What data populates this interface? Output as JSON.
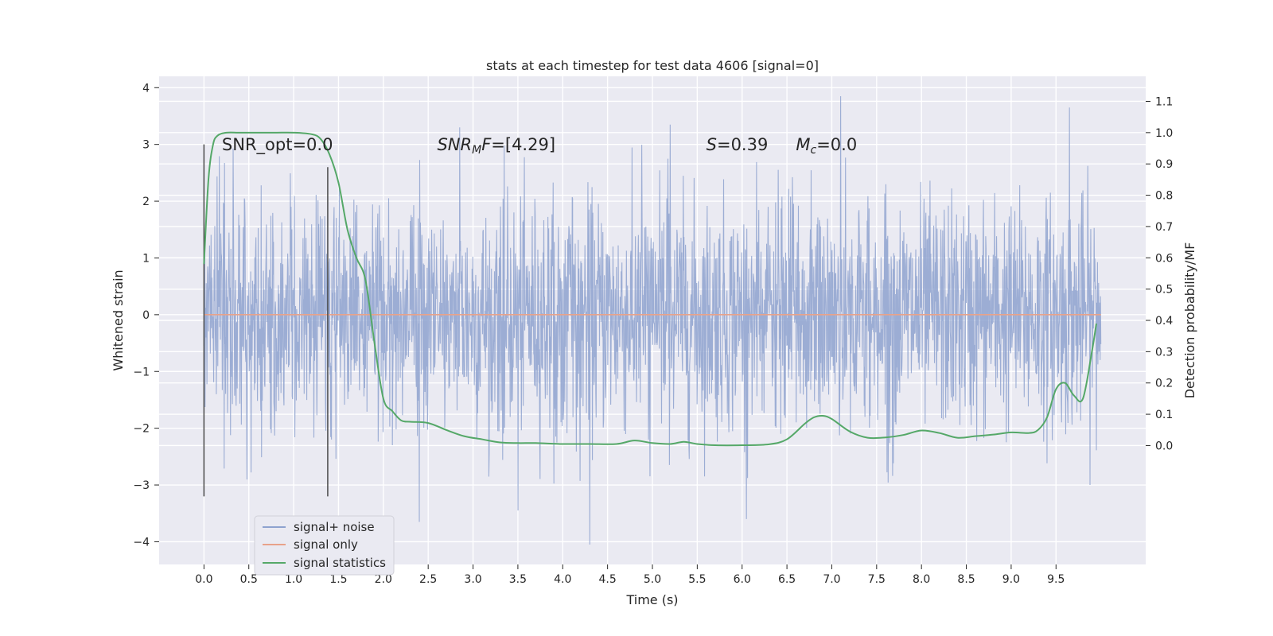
{
  "chart_data": {
    "type": "line",
    "title": "stats at each timestep for test data 4606 [signal=0]",
    "xlabel": "Time (s)",
    "ylabel": "Whitened strain",
    "ylabel_right": "Detection probability/MF",
    "xlim": [
      -0.5,
      10.5
    ],
    "ylim": [
      -4.4,
      4.2
    ],
    "ylim_right": [
      -0.38,
      1.18
    ],
    "x_ticks": [
      0.0,
      0.5,
      1.0,
      1.5,
      2.0,
      2.5,
      3.0,
      3.5,
      4.0,
      4.5,
      5.0,
      5.5,
      6.0,
      6.5,
      7.0,
      7.5,
      8.0,
      8.5,
      9.0,
      9.5
    ],
    "y_ticks": [
      -4,
      -3,
      -2,
      -1,
      0,
      1,
      2,
      3,
      4
    ],
    "y_ticks_right": [
      0.0,
      0.1,
      0.2,
      0.3,
      0.4,
      0.5,
      0.6,
      0.7,
      0.8,
      0.9,
      1.0,
      1.1
    ],
    "grid": true,
    "legend_position": "lower-left",
    "annotations": [
      {
        "prefix": "SNR_opt=0.0",
        "sub": "",
        "suffix": "",
        "x": 0.2,
        "y": 2.9
      },
      {
        "prefix": "SNR",
        "sub": "M",
        "suffix": "F=[4.29]",
        "x": 2.6,
        "y": 2.9
      },
      {
        "prefix": "S",
        "sub": "",
        "suffix": "=0.39",
        "x": 5.6,
        "y": 2.9
      },
      {
        "prefix": "M",
        "sub": "c",
        "suffix": "=0.0",
        "x": 6.6,
        "y": 2.9
      }
    ],
    "vlines": [
      {
        "x": 0.0,
        "y": [
          -3.2,
          3.0
        ]
      },
      {
        "x": 1.38,
        "y": [
          -3.2,
          2.6
        ]
      }
    ],
    "series": [
      {
        "name": "signal+ noise",
        "color": "#8ea2cf",
        "axis": "left",
        "x_range": [
          0.0,
          10.0
        ],
        "envelope": {
          "outer": 3.0,
          "dense": 1.7,
          "notable_peaks": [
            {
              "x": 7.1,
              "y": 3.85
            },
            {
              "x": 9.65,
              "y": 3.65
            },
            {
              "x": 5.2,
              "y": 3.35
            },
            {
              "x": 2.85,
              "y": 3.3
            },
            {
              "x": 4.3,
              "y": -4.05
            },
            {
              "x": 2.4,
              "y": -3.65
            },
            {
              "x": 6.05,
              "y": -3.6
            },
            {
              "x": 3.5,
              "y": -3.45
            }
          ]
        }
      },
      {
        "name": "signal only",
        "color": "#e8a28a",
        "axis": "left",
        "x": [
          0.0,
          10.0
        ],
        "y": [
          0.0,
          0.0
        ]
      },
      {
        "name": "signal statistics",
        "color": "#55a868",
        "axis": "right",
        "x": [
          0.0,
          0.05,
          0.1,
          0.15,
          0.25,
          0.4,
          0.6,
          0.8,
          1.0,
          1.2,
          1.3,
          1.4,
          1.5,
          1.6,
          1.7,
          1.8,
          1.9,
          2.0,
          2.1,
          2.2,
          2.3,
          2.5,
          2.7,
          2.9,
          3.1,
          3.3,
          3.5,
          3.7,
          4.0,
          4.3,
          4.6,
          4.8,
          5.0,
          5.2,
          5.35,
          5.5,
          5.7,
          6.0,
          6.3,
          6.5,
          6.7,
          6.8,
          6.9,
          7.0,
          7.2,
          7.4,
          7.6,
          7.8,
          8.0,
          8.2,
          8.4,
          8.6,
          8.8,
          9.0,
          9.2,
          9.3,
          9.4,
          9.5,
          9.6,
          9.7,
          9.8,
          9.9,
          9.95
        ],
        "y": [
          0.58,
          0.85,
          0.96,
          0.99,
          1.0,
          1.0,
          1.0,
          1.0,
          1.0,
          0.995,
          0.98,
          0.93,
          0.84,
          0.69,
          0.6,
          0.53,
          0.33,
          0.15,
          0.11,
          0.08,
          0.076,
          0.072,
          0.05,
          0.03,
          0.02,
          0.01,
          0.008,
          0.008,
          0.005,
          0.005,
          0.005,
          0.016,
          0.008,
          0.005,
          0.012,
          0.005,
          0.001,
          0.001,
          0.004,
          0.02,
          0.07,
          0.09,
          0.095,
          0.085,
          0.045,
          0.025,
          0.026,
          0.034,
          0.048,
          0.04,
          0.025,
          0.03,
          0.035,
          0.042,
          0.04,
          0.05,
          0.09,
          0.18,
          0.2,
          0.16,
          0.15,
          0.3,
          0.39
        ]
      }
    ]
  }
}
